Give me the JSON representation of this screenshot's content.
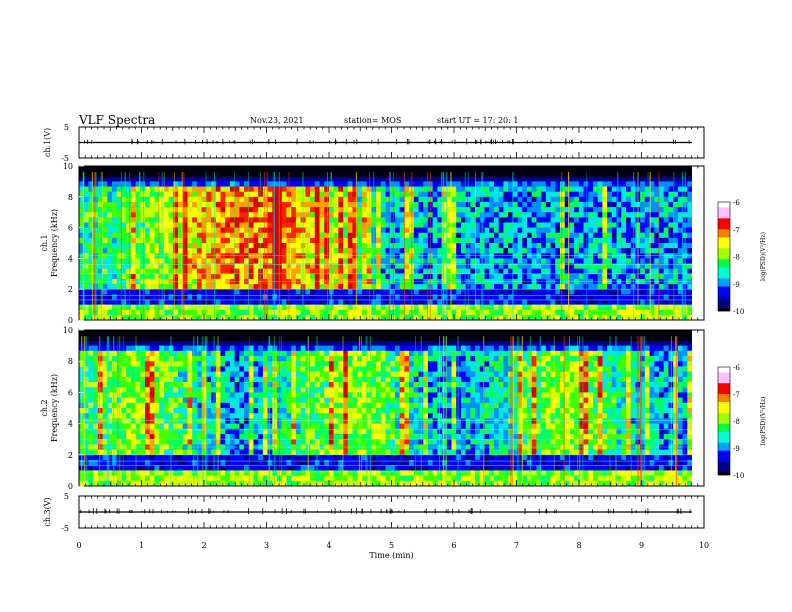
{
  "header": {
    "title": "VLF Spectra",
    "date": "Nov.23, 2021",
    "station": "station= MOS",
    "start": "start  UT =   17: 20: 1"
  },
  "colors": {
    "colormap": [
      "#000000",
      "#00008b",
      "#0000ff",
      "#00a0ff",
      "#00ffd0",
      "#00ff40",
      "#a0ff00",
      "#ffff00",
      "#ff8000",
      "#ff0000",
      "#ffc0ff",
      "#ffffff"
    ]
  },
  "chart_data": [
    {
      "type": "line",
      "ylabel": "ch.1(V)",
      "ylim": [
        -5,
        5
      ],
      "yticks": [
        "5",
        "-5"
      ],
      "trace_value": 0
    },
    {
      "type": "heatmap",
      "ylabel": "ch.1",
      "ylabel2": "Frequency (kHz)",
      "ylim": [
        0,
        10
      ],
      "yticks": [
        "0",
        "2",
        "4",
        "6",
        "8",
        "10"
      ],
      "colorbar": {
        "label": "log(PSD)(V²/Hz)",
        "range": [
          -10,
          -6
        ],
        "ticks": [
          "-6",
          "-7",
          "-8",
          "-9",
          "-10"
        ]
      }
    },
    {
      "type": "heatmap",
      "ylabel": "ch.2",
      "ylabel2": "Frequency (kHz)",
      "ylim": [
        0,
        10
      ],
      "yticks": [
        "0",
        "2",
        "4",
        "6",
        "8",
        "10"
      ],
      "colorbar": {
        "label": "log(PSD)(V²/Hz)",
        "range": [
          -10,
          -6
        ],
        "ticks": [
          "-6",
          "-7",
          "-8",
          "-9",
          "-10"
        ]
      }
    },
    {
      "type": "line",
      "ylabel": "ch.3(V)",
      "ylim": [
        -5,
        5
      ],
      "yticks": [
        "5",
        "-5"
      ],
      "trace_value": 0
    }
  ],
  "xaxis": {
    "label": "Time (min)",
    "xlim": [
      0,
      10
    ],
    "ticks": [
      "0",
      "1",
      "2",
      "3",
      "4",
      "5",
      "6",
      "7",
      "8",
      "9",
      "10"
    ]
  }
}
